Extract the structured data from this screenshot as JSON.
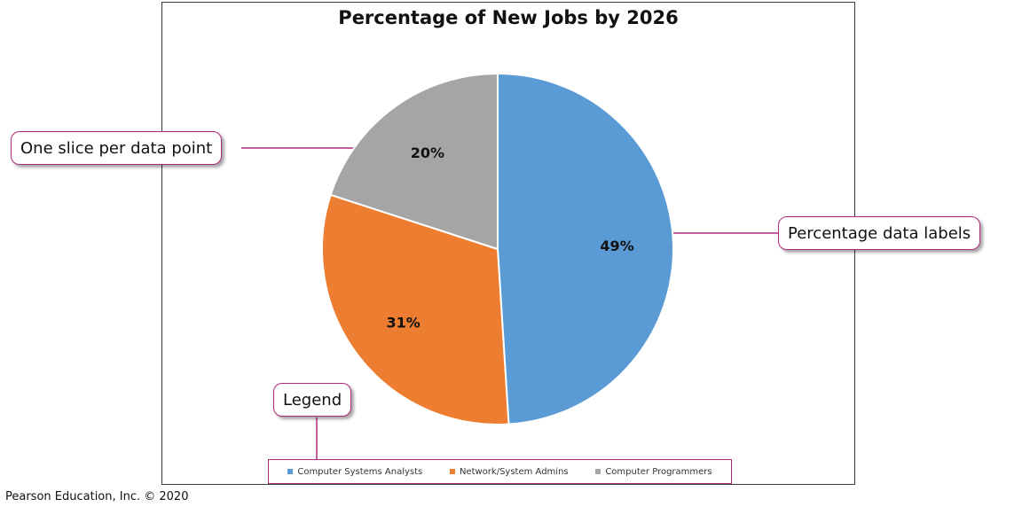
{
  "chart_data": {
    "type": "pie",
    "title": "Percentage of New Jobs by 2026",
    "categories": [
      "Computer Systems Analysts",
      "Network/System Admins",
      "Computer Programmers"
    ],
    "values": [
      49,
      31,
      20
    ],
    "labels": [
      "49%",
      "31%",
      "20%"
    ],
    "colors": [
      "#5b9bd5",
      "#ed7d31",
      "#a5a5a5"
    ],
    "legend": "bottom"
  },
  "callouts": {
    "slice": "One slice per data point",
    "labels": "Percentage data labels",
    "legend": "Legend"
  },
  "callout_color": "#b02a7a",
  "copyright": "Pearson Education, Inc. © 2020"
}
